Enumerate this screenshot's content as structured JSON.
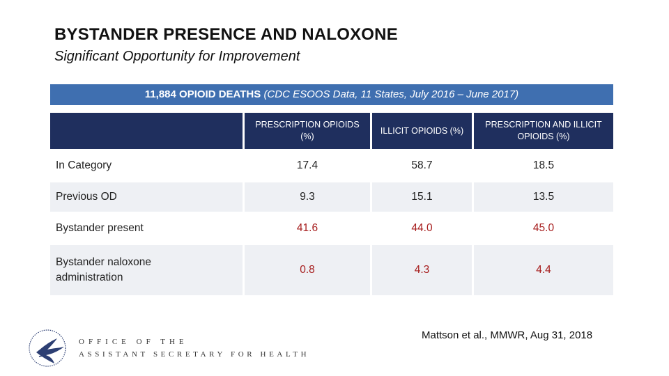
{
  "header": {
    "title": "BYSTANDER PRESENCE AND NALOXONE",
    "subtitle": "Significant Opportunity for Improvement"
  },
  "banner": {
    "bold_text": "11,884 OPIOID DEATHS",
    "italic_text": "(CDC ESOOS Data, 11 States, July 2016 – June 2017)"
  },
  "table": {
    "columns": [
      "",
      "PRESCRIPTION OPIOIDS (%)",
      "ILLICIT OPIOIDS (%)",
      "PRESCRIPTION AND ILLICIT OPIOIDS (%)"
    ],
    "rows": [
      {
        "label": "In Category",
        "values": [
          "17.4",
          "58.7",
          "18.5"
        ]
      },
      {
        "label": "Previous OD",
        "values": [
          "9.3",
          "15.1",
          "13.5"
        ]
      },
      {
        "label": "Bystander present",
        "values": [
          "41.6",
          "44.0",
          "45.0"
        ]
      },
      {
        "label": "Bystander naloxone administration",
        "values": [
          "0.8",
          "4.3",
          "4.4"
        ]
      }
    ]
  },
  "citation": "Mattson et al., MMWR, Aug 31, 2018",
  "footer": {
    "office_line1": "OFFICE OF THE",
    "office_line2": "ASSISTANT SECRETARY FOR HEALTH",
    "logo_icon": "hhs-eagle-seal-icon"
  },
  "colors": {
    "banner": "#3f6fb0",
    "header_cells": "#1f2f5e",
    "row_shade": "#eef0f4",
    "red_value": "#a61c1c"
  }
}
